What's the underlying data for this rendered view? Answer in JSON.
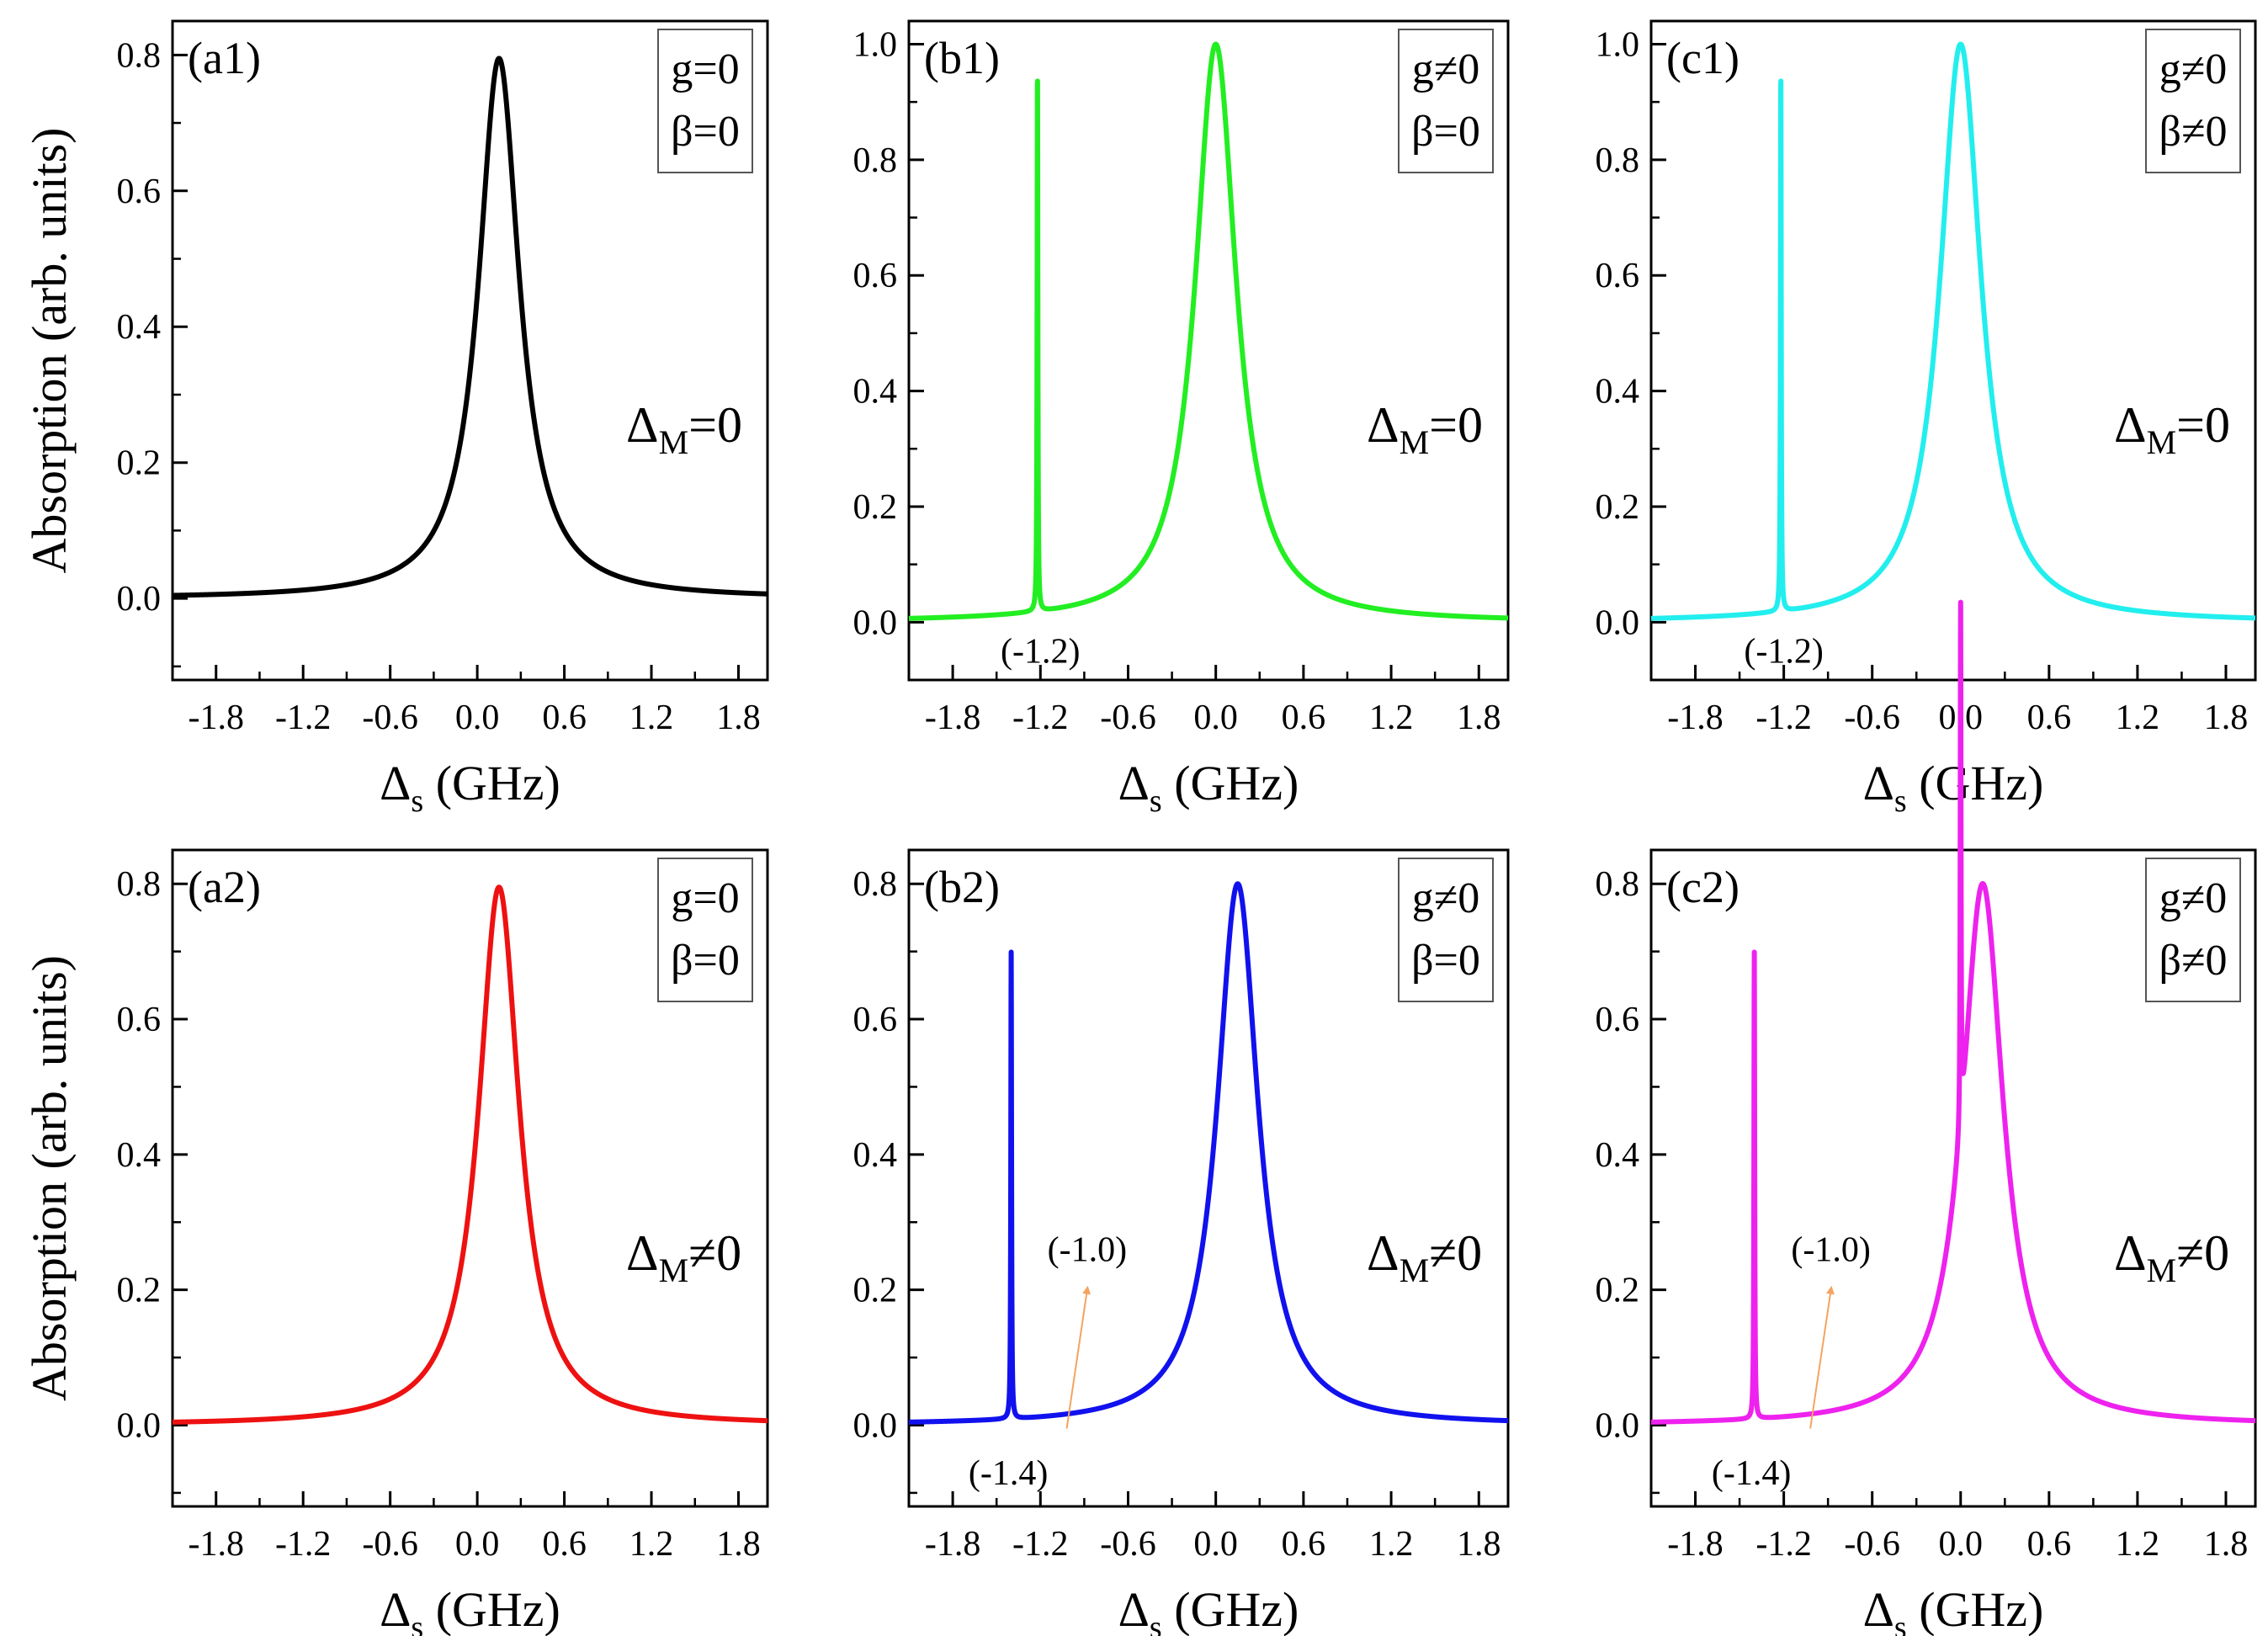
{
  "figure": {
    "ylabel": "Absorption (arb. units)"
  },
  "chart_data": [
    {
      "id": "a1",
      "type": "line",
      "panel_label": "(a1)",
      "legend": [
        "g=0",
        "β=0"
      ],
      "detuning_label": {
        "symbol": "Δ",
        "sub": "M",
        "rest": "=0"
      },
      "xlabel": {
        "symbol": "Δ",
        "sub": "s",
        "rest": " (GHz)"
      },
      "xlim": [
        -2.1,
        2.0
      ],
      "ylim": [
        -0.12,
        0.85
      ],
      "xticks": [
        -1.8,
        -1.2,
        -0.6,
        0.0,
        0.6,
        1.2,
        1.8
      ],
      "xtick_labels": [
        "-1.8",
        "-1.2",
        "-0.6",
        "0.0",
        "0.6",
        "1.2",
        "1.8"
      ],
      "yticks": [
        0.0,
        0.2,
        0.4,
        0.6,
        0.8
      ],
      "ytick_labels": [
        "0.0",
        "0.2",
        "0.4",
        "0.6",
        "0.8"
      ],
      "color": "#000000",
      "series": [
        {
          "name": "absorption",
          "lorentzians": [
            {
              "center": 0.15,
              "height": 0.795,
              "hwhm": 0.17
            }
          ],
          "baseline": 0
        }
      ],
      "annotations": []
    },
    {
      "id": "b1",
      "type": "line",
      "panel_label": "(b1)",
      "legend": [
        "g≠0",
        "β=0"
      ],
      "detuning_label": {
        "symbol": "Δ",
        "sub": "M",
        "rest": "=0"
      },
      "xlabel": {
        "symbol": "Δ",
        "sub": "s",
        "rest": " (GHz)"
      },
      "xlim": [
        -2.1,
        2.0
      ],
      "ylim": [
        -0.1,
        1.04
      ],
      "xticks": [
        -1.8,
        -1.2,
        -0.6,
        0.0,
        0.6,
        1.2,
        1.8
      ],
      "xtick_labels": [
        "-1.8",
        "-1.2",
        "-0.6",
        "0.0",
        "0.6",
        "1.2",
        "1.8"
      ],
      "yticks": [
        0.0,
        0.2,
        0.4,
        0.6,
        0.8,
        1.0
      ],
      "ytick_labels": [
        "0.0",
        "0.2",
        "0.4",
        "0.6",
        "0.8",
        "1.0"
      ],
      "color": "#22ee22",
      "series": [
        {
          "name": "absorption",
          "lorentzians": [
            {
              "center": 0.0,
              "height": 1.0,
              "hwhm": 0.17
            },
            {
              "center": -1.22,
              "height": 0.94,
              "hwhm": 0.003
            }
          ],
          "baseline": 0
        }
      ],
      "annotations": [
        {
          "text": "(-1.2)",
          "x": -1.2,
          "y": -0.05
        }
      ]
    },
    {
      "id": "c1",
      "type": "line",
      "panel_label": "(c1)",
      "legend": [
        "g≠0",
        "β≠0"
      ],
      "detuning_label": {
        "symbol": "Δ",
        "sub": "M",
        "rest": "=0"
      },
      "xlabel": {
        "symbol": "Δ",
        "sub": "s",
        "rest": " (GHz)"
      },
      "xlim": [
        -2.1,
        2.0
      ],
      "ylim": [
        -0.1,
        1.04
      ],
      "xticks": [
        -1.8,
        -1.2,
        -0.6,
        0.0,
        0.6,
        1.2,
        1.8
      ],
      "xtick_labels": [
        "-1.8",
        "-1.2",
        "-0.6",
        "0.0",
        "0.6",
        "1.2",
        "1.8"
      ],
      "yticks": [
        0.0,
        0.2,
        0.4,
        0.6,
        0.8,
        1.0
      ],
      "ytick_labels": [
        "0.0",
        "0.2",
        "0.4",
        "0.6",
        "0.8",
        "1.0"
      ],
      "color": "#22eeee",
      "series": [
        {
          "name": "absorption",
          "lorentzians": [
            {
              "center": 0.0,
              "height": 1.0,
              "hwhm": 0.17
            },
            {
              "center": -1.22,
              "height": 0.94,
              "hwhm": 0.003
            }
          ],
          "baseline": 0
        }
      ],
      "annotations": [
        {
          "text": "(-1.2)",
          "x": -1.2,
          "y": -0.05
        }
      ]
    },
    {
      "id": "a2",
      "type": "line",
      "panel_label": "(a2)",
      "legend": [
        "g=0",
        "β=0"
      ],
      "detuning_label": {
        "symbol": "Δ",
        "sub": "M",
        "rest": "≠0"
      },
      "xlabel": {
        "symbol": "Δ",
        "sub": "s",
        "rest": " (GHz)"
      },
      "xlim": [
        -2.1,
        2.0
      ],
      "ylim": [
        -0.12,
        0.85
      ],
      "xticks": [
        -1.8,
        -1.2,
        -0.6,
        0.0,
        0.6,
        1.2,
        1.8
      ],
      "xtick_labels": [
        "-1.8",
        "-1.2",
        "-0.6",
        "0.0",
        "0.6",
        "1.2",
        "1.8"
      ],
      "yticks": [
        0.0,
        0.2,
        0.4,
        0.6,
        0.8
      ],
      "ytick_labels": [
        "0.0",
        "0.2",
        "0.4",
        "0.6",
        "0.8"
      ],
      "color": "#ee1111",
      "series": [
        {
          "name": "absorption",
          "lorentzians": [
            {
              "center": 0.15,
              "height": 0.795,
              "hwhm": 0.17
            }
          ],
          "baseline": 0
        }
      ],
      "annotations": []
    },
    {
      "id": "b2",
      "type": "line",
      "panel_label": "(b2)",
      "legend": [
        "g≠0",
        "β=0"
      ],
      "detuning_label": {
        "symbol": "Δ",
        "sub": "M",
        "rest": "≠0"
      },
      "xlabel": {
        "symbol": "Δ",
        "sub": "s",
        "rest": " (GHz)"
      },
      "xlim": [
        -2.1,
        2.0
      ],
      "ylim": [
        -0.12,
        0.85
      ],
      "xticks": [
        -1.8,
        -1.2,
        -0.6,
        0.0,
        0.6,
        1.2,
        1.8
      ],
      "xtick_labels": [
        "-1.8",
        "-1.2",
        "-0.6",
        "0.0",
        "0.6",
        "1.2",
        "1.8"
      ],
      "yticks": [
        0.0,
        0.2,
        0.4,
        0.6,
        0.8
      ],
      "ytick_labels": [
        "0.0",
        "0.2",
        "0.4",
        "0.6",
        "0.8"
      ],
      "color": "#1111ee",
      "series": [
        {
          "name": "absorption",
          "lorentzians": [
            {
              "center": 0.15,
              "height": 0.8,
              "hwhm": 0.17
            },
            {
              "center": -1.4,
              "height": 0.69,
              "hwhm": 0.003
            }
          ],
          "baseline": 0
        }
      ],
      "annotations": [
        {
          "text": "(-1.4)",
          "x": -1.42,
          "y": -0.07
        },
        {
          "text": "(-1.0)",
          "x": -0.88,
          "y": 0.26
        }
      ],
      "arrow": {
        "from": [
          -1.02,
          -0.005
        ],
        "to": [
          -0.88,
          0.2
        ]
      }
    },
    {
      "id": "c2",
      "type": "line",
      "panel_label": "(c2)",
      "legend": [
        "g≠0",
        "β≠0"
      ],
      "detuning_label": {
        "symbol": "Δ",
        "sub": "M",
        "rest": "≠0"
      },
      "xlabel": {
        "symbol": "Δ",
        "sub": "s",
        "rest": " (GHz)"
      },
      "xlim": [
        -2.1,
        2.0
      ],
      "ylim": [
        -0.12,
        0.85
      ],
      "xticks": [
        -1.8,
        -1.2,
        -0.6,
        0.0,
        0.6,
        1.2,
        1.8
      ],
      "xtick_labels": [
        "-1.8",
        "-1.2",
        "-0.6",
        "0.0",
        "0.6",
        "1.2",
        "1.8"
      ],
      "yticks": [
        0.0,
        0.2,
        0.4,
        0.6,
        0.8
      ],
      "ytick_labels": [
        "0.0",
        "0.2",
        "0.4",
        "0.6",
        "0.8"
      ],
      "color": "#ee22ee",
      "series": [
        {
          "name": "absorption",
          "lorentzians": [
            {
              "center": 0.15,
              "height": 0.8,
              "hwhm": 0.17
            },
            {
              "center": -1.4,
              "height": 0.69,
              "hwhm": 0.003
            },
            {
              "center": 0.0,
              "height": 0.77,
              "hwhm": 0.003
            }
          ],
          "baseline": 0
        }
      ],
      "annotations": [
        {
          "text": "(-1.4)",
          "x": -1.42,
          "y": -0.07
        },
        {
          "text": "(-1.0)",
          "x": -0.88,
          "y": 0.26
        }
      ],
      "arrow": {
        "from": [
          -1.02,
          -0.005
        ],
        "to": [
          -0.88,
          0.2
        ]
      }
    }
  ]
}
